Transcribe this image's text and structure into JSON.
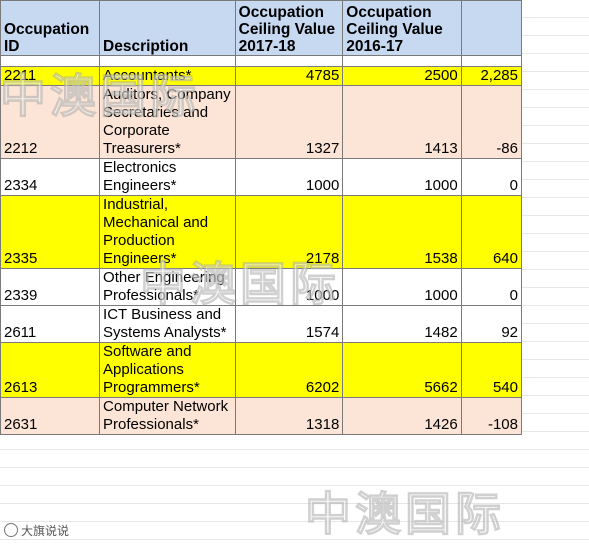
{
  "headers": {
    "id": "Occupation ID",
    "description": "Description",
    "value_2017": "Occupation Ceiling Value 2017-18",
    "value_2016": "Occupation Ceiling Value 2016-17"
  },
  "rows": [
    {
      "id": "2211",
      "description": "Accountants*",
      "v2017": "4785",
      "v2016": "2500",
      "diff": "2,285",
      "highlight": "yellow"
    },
    {
      "id": "2212",
      "description": "Auditors, Company Secretaries and Corporate Treasurers*",
      "v2017": "1327",
      "v2016": "1413",
      "diff": "-86",
      "highlight": "peach"
    },
    {
      "id": "2334",
      "description": "Electronics Engineers*",
      "v2017": "1000",
      "v2016": "1000",
      "diff": "0",
      "highlight": "white"
    },
    {
      "id": "2335",
      "description": "Industrial, Mechanical and Production Engineers*",
      "v2017": "2178",
      "v2016": "1538",
      "diff": "640",
      "highlight": "yellow"
    },
    {
      "id": "2339",
      "description": "Other Engineering Professionals*",
      "v2017": "1000",
      "v2016": "1000",
      "diff": "0",
      "highlight": "white"
    },
    {
      "id": "2611",
      "description": "ICT Business and Systems Analysts*",
      "v2017": "1574",
      "v2016": "1482",
      "diff": "92",
      "highlight": "white"
    },
    {
      "id": "2613",
      "description": "Software and Applications Programmers*",
      "v2017": "6202",
      "v2016": "5662",
      "diff": "540",
      "highlight": "yellow"
    },
    {
      "id": "2631",
      "description": "Computer Network Professionals*",
      "v2017": "1318",
      "v2016": "1426",
      "diff": "-108",
      "highlight": "peach"
    }
  ],
  "watermark": "中澳国际",
  "credit": "大旗说说",
  "colors": {
    "header": "#c6d9f1",
    "yellow": "#ffff00",
    "peach": "#fce4d6",
    "negative": "#e00000"
  }
}
